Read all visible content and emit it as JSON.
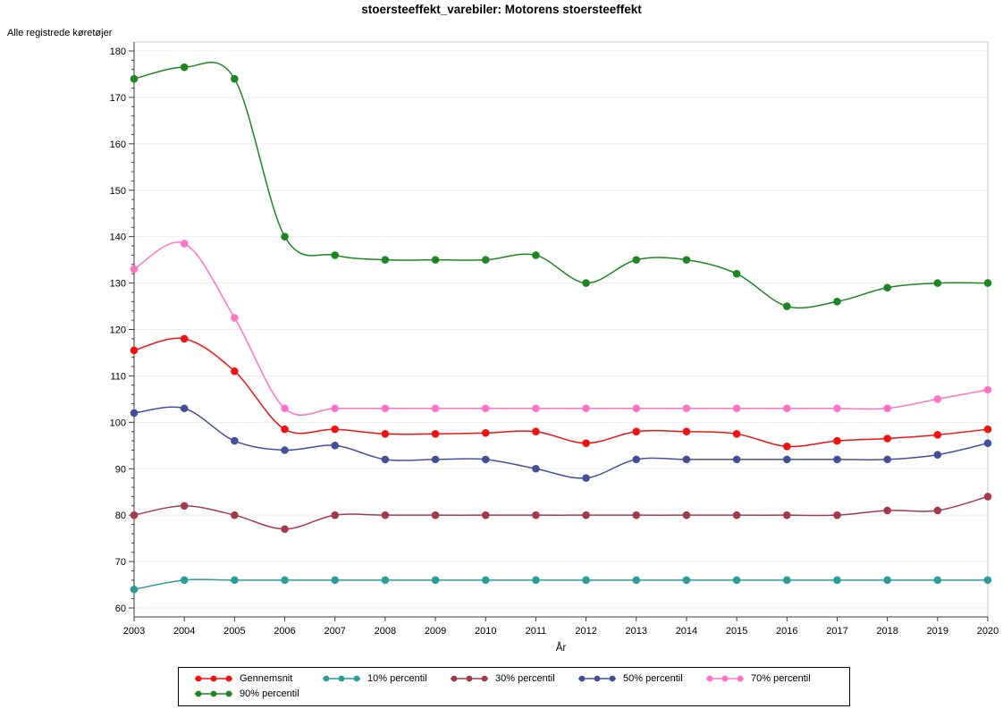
{
  "window": {
    "title": "stoersteeffekt_varebiler: Motorens stoersteeffekt"
  },
  "chart_data": {
    "type": "line",
    "title": "stoersteeffekt_varebiler: Motorens stoersteeffekt",
    "ylabel": "Alle registrede køretøjer",
    "xlabel": "År",
    "x": [
      2003,
      2004,
      2005,
      2006,
      2007,
      2008,
      2009,
      2010,
      2011,
      2012,
      2013,
      2014,
      2015,
      2016,
      2017,
      2018,
      2019,
      2020
    ],
    "ylim": [
      60,
      180
    ],
    "ytick_step": 10,
    "ytick_minor_step": 2,
    "grid": "horizontal-only",
    "legend_position": "bottom",
    "marker_style": "filled-circle",
    "line_style": "smooth-spline",
    "series": [
      {
        "name": "Gennemsnit",
        "color": "#f01111",
        "values": [
          115.5,
          118,
          111,
          98.5,
          98.5,
          97.5,
          97.5,
          97.7,
          98,
          95.5,
          98,
          98,
          97.5,
          94.8,
          96,
          96.5,
          97.3,
          98.5
        ]
      },
      {
        "name": "10% percentil",
        "color": "#2a9d96",
        "values": [
          64,
          66,
          66,
          66,
          66,
          66,
          66,
          66,
          66,
          66,
          66,
          66,
          66,
          66,
          66,
          66,
          66,
          66
        ]
      },
      {
        "name": "30% percentil",
        "color": "#a23a4e",
        "values": [
          80,
          82,
          80,
          77,
          80,
          80,
          80,
          80,
          80,
          80,
          80,
          80,
          80,
          80,
          80,
          81,
          81,
          84
        ]
      },
      {
        "name": "50% percentil",
        "color": "#454f99",
        "values": [
          102,
          103,
          96,
          94,
          95,
          92,
          92,
          92,
          90,
          88,
          92,
          92,
          92,
          92,
          92,
          92,
          93,
          95.5
        ]
      },
      {
        "name": "70% percentil",
        "color": "#ff73c7",
        "values": [
          133,
          138.5,
          122.5,
          103,
          103,
          103,
          103,
          103,
          103,
          103,
          103,
          103,
          103,
          103,
          103,
          103,
          105,
          107
        ]
      },
      {
        "name": "90% percentil",
        "color": "#1d8522",
        "values": [
          174,
          176.5,
          174,
          140,
          136,
          135,
          135,
          135,
          136,
          130,
          135,
          135,
          132,
          125,
          126,
          129,
          130,
          130
        ]
      }
    ],
    "colors": {
      "grid": "#eeeeee",
      "frame": "#c9c9c9",
      "axis": "#3c3c3c",
      "background": "#ffffff"
    }
  }
}
